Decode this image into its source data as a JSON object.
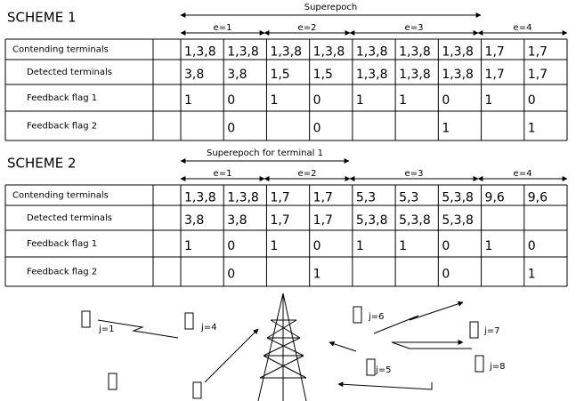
{
  "scheme1": {
    "title": "SCHEME 1",
    "superepoch": "Superepoch",
    "epochs": [
      "e=1",
      "e=2",
      "e=3",
      "e=4"
    ],
    "rows": [
      {
        "label": "Contending terminals",
        "cells": [
          "1,3,8",
          "1,3,8",
          "1,3,8",
          "1,3,8",
          "1,3,8",
          "1,3,8",
          "1,3,8",
          "1,7",
          "1,7"
        ]
      },
      {
        "label": "Detected terminals",
        "cells": [
          "3,8",
          "3,8",
          "1,5",
          "1,5",
          "1,3,8",
          "1,3,8",
          "1,3,8",
          "1,7",
          "1,7"
        ]
      },
      {
        "label": "Feedback flag 1",
        "cells": [
          "1",
          "0",
          "1",
          "0",
          "1",
          "1",
          "0",
          "1",
          "0"
        ]
      },
      {
        "label": "Feedback flag 2",
        "cells": [
          null,
          "0",
          null,
          "0",
          null,
          null,
          "1",
          null,
          "1"
        ]
      }
    ]
  },
  "scheme2": {
    "title": "SCHEME 2",
    "superepoch": "Superepoch for terminal 1",
    "epochs": [
      "e=1",
      "e=2",
      "e=3",
      "e=4"
    ],
    "rows": [
      {
        "label": "Contending terminals",
        "cells": [
          "1,3,8",
          "1,3,8",
          "1,7",
          "1,7",
          "5,3",
          "5,3",
          "5,3,8",
          "9,6",
          "9,6"
        ]
      },
      {
        "label": "Detected terminals",
        "cells": [
          "3,8",
          "3,8",
          "1,7",
          "1,7",
          "5,3,8",
          "5,3,8",
          "5,3,8",
          null,
          null
        ]
      },
      {
        "label": "Feedback flag 1",
        "cells": [
          "1",
          "0",
          "1",
          "0",
          "1",
          "1",
          "0",
          "1",
          "0"
        ]
      },
      {
        "label": "Feedback flag 2",
        "cells": [
          null,
          "0",
          null,
          "1",
          null,
          null,
          "0",
          null,
          "1"
        ]
      }
    ]
  },
  "terminals": [
    "j=1",
    "j=4",
    "j=6",
    "j=7",
    "j=5",
    "j=8"
  ]
}
